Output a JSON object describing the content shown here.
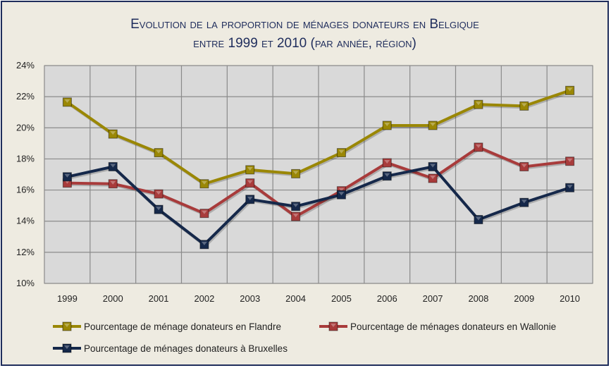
{
  "chart_data": {
    "type": "line",
    "title": "Evolution de la proportion de ménages donateurs  en Belgique",
    "subtitle": "entre 1999 et 2010 (par année, région)",
    "categories": [
      "1999",
      "2000",
      "2001",
      "2002",
      "2003",
      "2004",
      "2005",
      "2006",
      "2007",
      "2008",
      "2009",
      "2010"
    ],
    "ylim": [
      10,
      24
    ],
    "yticks": [
      "10%",
      "12%",
      "14%",
      "16%",
      "18%",
      "20%",
      "22%",
      "24%"
    ],
    "ytick_values": [
      10,
      12,
      14,
      16,
      18,
      20,
      22,
      24
    ],
    "grid": true,
    "legend_placement": "bottom",
    "series": [
      {
        "name": "Pourcentage de ménage donateurs en Flandre",
        "color": "#9a8705",
        "values": [
          21.65,
          19.6,
          18.4,
          16.4,
          17.3,
          17.05,
          18.4,
          20.15,
          20.15,
          21.5,
          21.4,
          22.4
        ]
      },
      {
        "name": "Pourcentage de ménages donateurs en Wallonie",
        "color": "#a83b3b",
        "values": [
          16.45,
          16.4,
          15.75,
          14.5,
          16.45,
          14.3,
          15.95,
          17.75,
          16.75,
          18.75,
          17.5,
          17.85
        ]
      },
      {
        "name": "Pourcentage de ménages donateurs à Bruxelles",
        "color": "#15284a",
        "values": [
          16.85,
          17.5,
          14.75,
          12.5,
          15.4,
          14.95,
          15.7,
          16.9,
          17.5,
          14.1,
          15.2,
          16.15
        ]
      }
    ]
  }
}
